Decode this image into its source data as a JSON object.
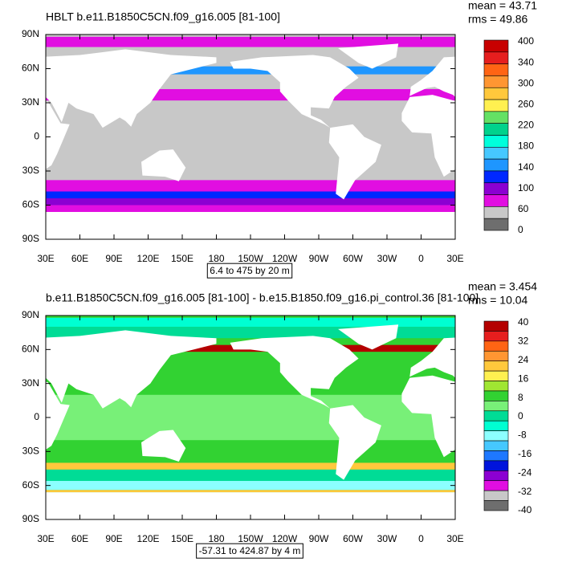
{
  "panels": [
    {
      "title": "HBLT b.e11.B1850C5CN.f09_g16.005 [81-100]",
      "mean": "mean = 43.71",
      "rms": "rms = 49.86",
      "lat_labels": [
        "90N",
        "60N",
        "30N",
        "0",
        "30S",
        "60S",
        "90S"
      ],
      "lon_labels": [
        "30E",
        "60E",
        "90E",
        "120E",
        "150E",
        "180",
        "150W",
        "120W",
        "90W",
        "60W",
        "30W",
        "0",
        "30E"
      ],
      "range_note": "6.4 to 475 by 20 m",
      "colorbar_labels": [
        400,
        340,
        300,
        260,
        220,
        180,
        140,
        100,
        60,
        0
      ],
      "colorbar_colors": [
        "#c80000",
        "#e61e1e",
        "#ff6414",
        "#ff9632",
        "#ffc83c",
        "#fff050",
        "#64e164",
        "#00d28c",
        "#00ffdc",
        "#46c8ff",
        "#1e96ff",
        "#0028ff",
        "#8c00d2",
        "#e10ee1",
        "#c8c8c8",
        "#6e6e6e"
      ]
    },
    {
      "title": "b.e11.B1850C5CN.f09_g16.005 [81-100] - b.e15.B1850.f09_g16.pi_control.36 [81-100]",
      "mean": "mean = 3.454",
      "rms": "rms = 10.04",
      "lat_labels": [
        "90N",
        "60N",
        "30N",
        "0",
        "30S",
        "60S",
        "90S"
      ],
      "lon_labels": [
        "30E",
        "60E",
        "90E",
        "120E",
        "150E",
        "180",
        "150W",
        "120W",
        "90W",
        "60W",
        "30W",
        "0",
        "30E"
      ],
      "range_note": "-57.31 to 424.87 by 4 m",
      "colorbar_labels": [
        40,
        32,
        24,
        16,
        8,
        0,
        -8,
        -16,
        -24,
        -32,
        -40
      ],
      "colorbar_colors": [
        "#b40000",
        "#e61e1e",
        "#ff6414",
        "#ff9632",
        "#ffc83c",
        "#fff050",
        "#a0e632",
        "#32d232",
        "#78f078",
        "#00dc96",
        "#00ffd2",
        "#8cffff",
        "#46c8ff",
        "#1e78ff",
        "#0014dc",
        "#8c00d2",
        "#e10ee1",
        "#c8c8c8",
        "#6e6e6e"
      ]
    }
  ]
}
